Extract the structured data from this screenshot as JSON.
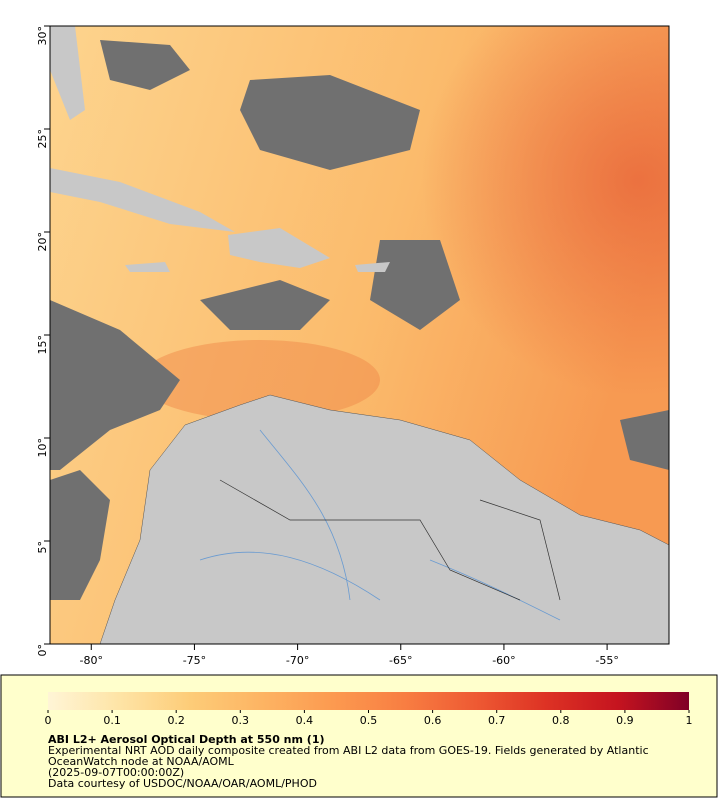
{
  "map": {
    "xlim": [
      -82,
      -52
    ],
    "ylim": [
      0,
      30
    ],
    "xticks": [
      {
        "value": -80,
        "label": "-80°"
      },
      {
        "value": -75,
        "label": "-75°"
      },
      {
        "value": -70,
        "label": "-70°"
      },
      {
        "value": -65,
        "label": "-65°"
      },
      {
        "value": -60,
        "label": "-60°"
      },
      {
        "value": -55,
        "label": "-55°"
      }
    ],
    "yticks": [
      {
        "value": 0,
        "label": "0°"
      },
      {
        "value": 5,
        "label": "5°"
      },
      {
        "value": 10,
        "label": "10°"
      },
      {
        "value": 15,
        "label": "15°"
      },
      {
        "value": 20,
        "label": "20°"
      },
      {
        "value": 25,
        "label": "25°"
      },
      {
        "value": 30,
        "label": "30°"
      }
    ]
  },
  "colorbar": {
    "lim": [
      0,
      1
    ],
    "ticks": [
      0,
      0.1,
      0.2,
      0.3,
      0.4,
      0.5,
      0.6,
      0.7,
      0.8,
      0.9,
      1
    ],
    "colors": [
      "#fff5d6",
      "#fee4a6",
      "#fdcc78",
      "#fdb463",
      "#fc9a50",
      "#f87e42",
      "#ee5a33",
      "#dd3224",
      "#c5141f",
      "#800026"
    ]
  },
  "caption": {
    "title": "ABI L2+ Aerosol Optical Depth at 550 nm (1)",
    "lines": [
      "Experimental NRT AOD daily composite created from ABI L2 data from GOES-19. Fields generated by Atlantic",
      "OceanWatch node at NOAA/AOML",
      "(2025-09-07T00:00:00Z)",
      "Data courtesy of USDOC/NOAA/OAR/AOML/PHOD"
    ]
  }
}
